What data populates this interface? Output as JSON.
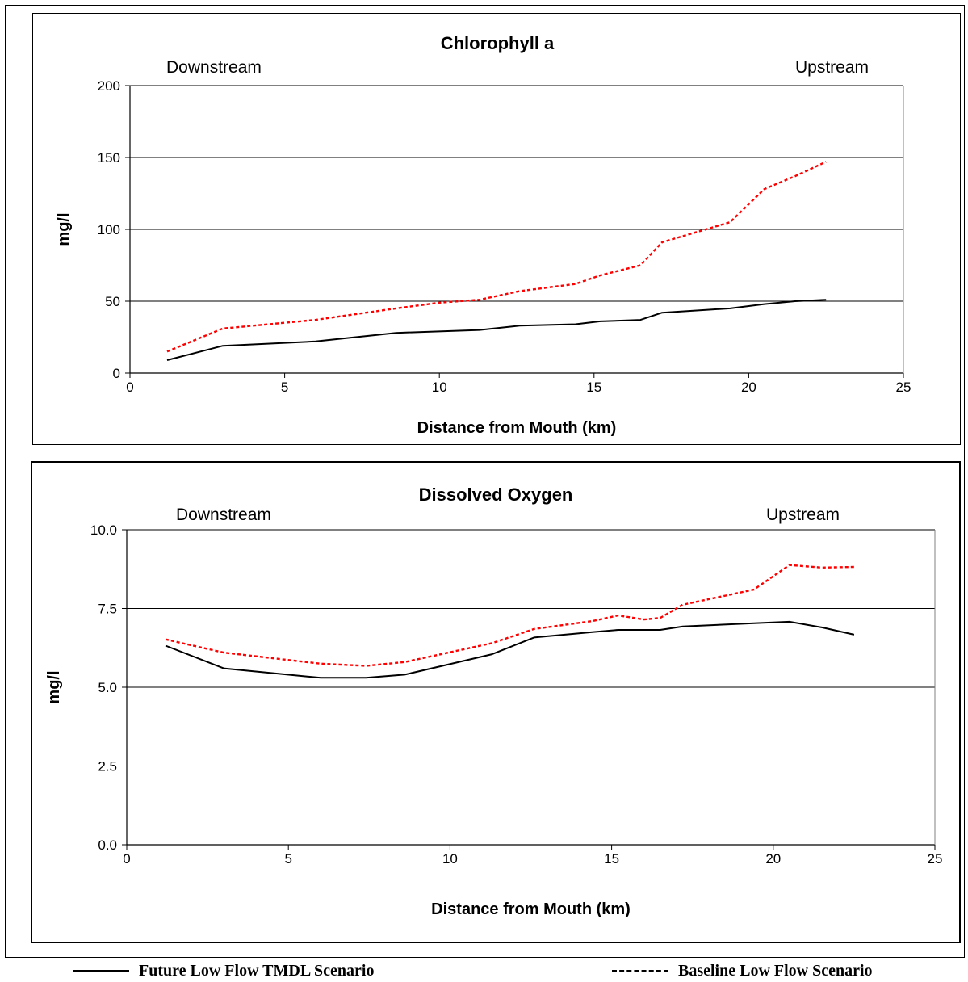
{
  "chart_data": [
    {
      "type": "line",
      "title": "Chlorophyll a",
      "xlabel": "Distance from Mouth (km)",
      "ylabel": "mg/l",
      "left_annotation": "Downstream",
      "right_annotation": "Upstream",
      "xlim": [
        0,
        25
      ],
      "ylim": [
        0,
        200
      ],
      "xticks": [
        0,
        5,
        10,
        15,
        20,
        25
      ],
      "yticks": [
        0,
        50,
        100,
        150,
        200
      ],
      "ytick_labels": [
        "0",
        "50",
        "100",
        "150",
        "200"
      ],
      "grid": "horizontal",
      "series": [
        {
          "name": "Future Low Flow TMDL Scenario",
          "color": "#000000",
          "style": "solid",
          "x": [
            1.2,
            3.0,
            6.0,
            8.6,
            11.3,
            12.6,
            14.4,
            15.2,
            16.5,
            17.2,
            19.4,
            20.5,
            21.5,
            22.5
          ],
          "y": [
            9,
            19,
            22,
            28,
            30,
            33,
            34,
            36,
            37,
            42,
            45,
            48,
            50,
            51
          ]
        },
        {
          "name": "Baseline Low Flow Scenario",
          "color": "#ff0000",
          "style": "dashed",
          "x": [
            1.2,
            3.0,
            6.0,
            8.6,
            10.0,
            11.3,
            12.6,
            14.4,
            15.2,
            16.5,
            17.2,
            19.4,
            20.5,
            21.5,
            22.5
          ],
          "y": [
            15,
            31,
            37,
            45,
            49,
            51,
            57,
            62,
            68,
            75,
            91,
            105,
            128,
            137,
            147
          ]
        }
      ]
    },
    {
      "type": "line",
      "title": "Dissolved Oxygen",
      "xlabel": "Distance from Mouth (km)",
      "ylabel": "mg/l",
      "left_annotation": "Downstream",
      "right_annotation": "Upstream",
      "xlim": [
        0,
        25
      ],
      "ylim": [
        0,
        10
      ],
      "xticks": [
        0,
        5,
        10,
        15,
        20,
        25
      ],
      "yticks": [
        0,
        2.5,
        5,
        7.5,
        10
      ],
      "ytick_labels": [
        "0.0",
        "2.5",
        "5.0",
        "7.5",
        "10.0"
      ],
      "grid": "horizontal",
      "series": [
        {
          "name": "Future Low Flow TMDL Scenario",
          "color": "#000000",
          "style": "solid",
          "x": [
            1.2,
            3.0,
            6.0,
            7.4,
            8.6,
            11.3,
            12.6,
            14.4,
            15.2,
            16.5,
            17.2,
            19.4,
            20.5,
            21.5,
            22.5
          ],
          "y": [
            6.32,
            5.6,
            5.3,
            5.3,
            5.4,
            6.05,
            6.58,
            6.75,
            6.82,
            6.82,
            6.93,
            7.03,
            7.08,
            6.9,
            6.67
          ]
        },
        {
          "name": "Baseline Low Flow Scenario",
          "color": "#ff0000",
          "style": "dashed",
          "x": [
            1.2,
            3.0,
            6.0,
            7.4,
            8.6,
            11.3,
            12.6,
            14.4,
            15.2,
            16.0,
            16.5,
            17.2,
            19.4,
            20.5,
            21.5,
            22.5
          ],
          "y": [
            6.52,
            6.1,
            5.75,
            5.68,
            5.8,
            6.4,
            6.85,
            7.1,
            7.28,
            7.15,
            7.2,
            7.62,
            8.1,
            8.88,
            8.8,
            8.82
          ]
        }
      ]
    }
  ],
  "legend": {
    "items": [
      {
        "label": "Future Low Flow TMDL Scenario",
        "style": "solid"
      },
      {
        "label": "Baseline Low Flow Scenario",
        "style": "dashed"
      }
    ]
  }
}
